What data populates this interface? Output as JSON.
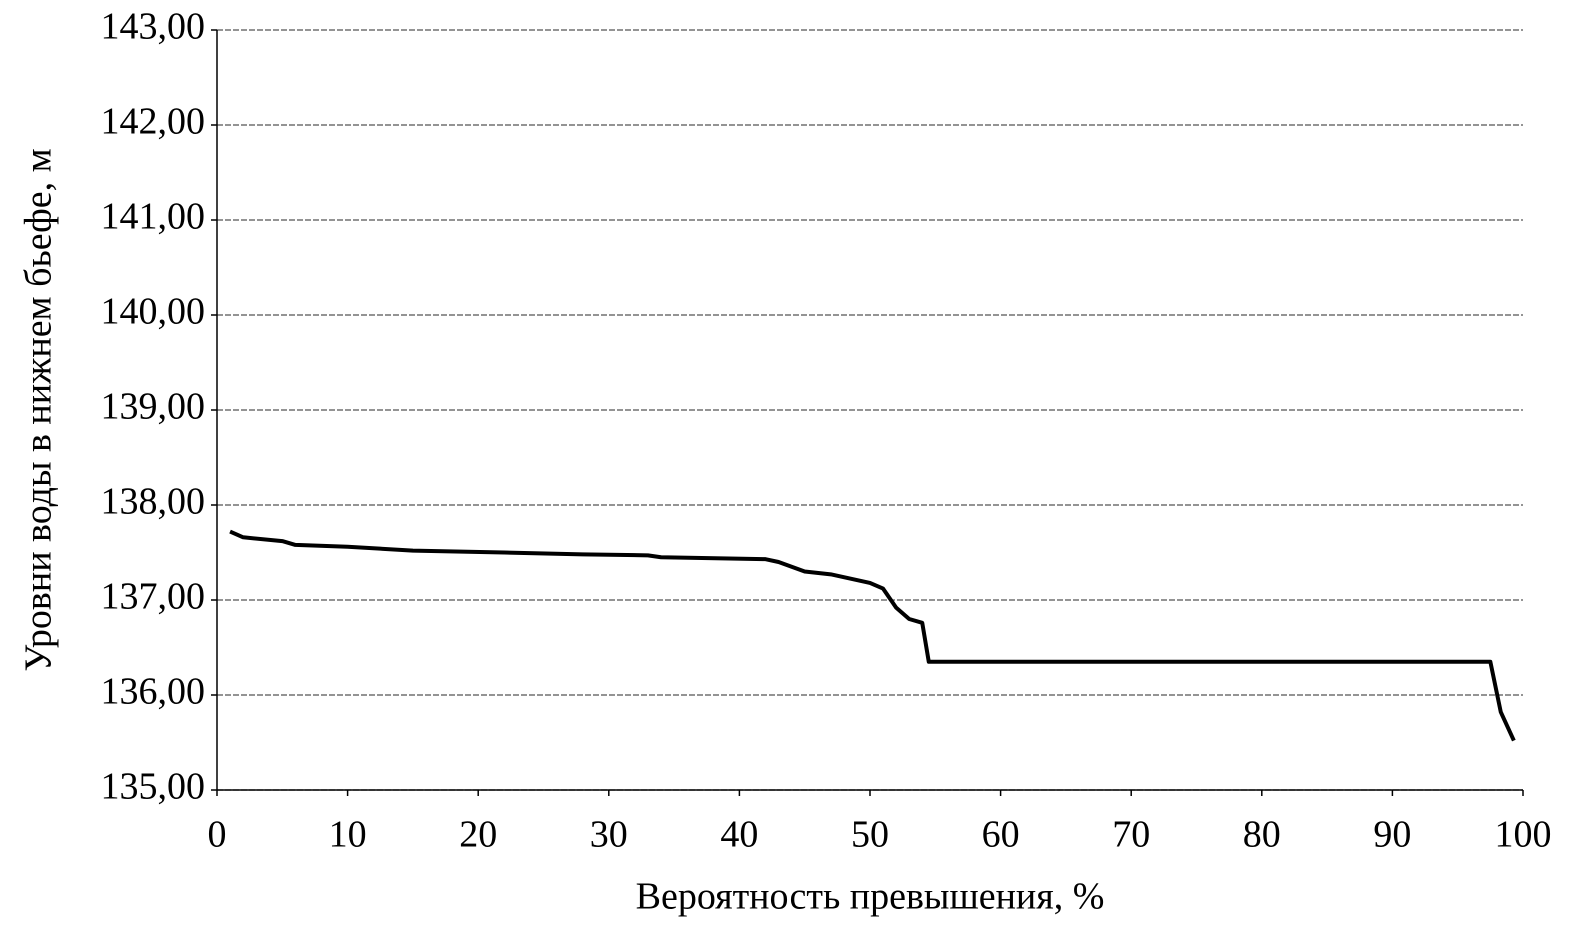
{
  "chart_data": {
    "type": "line",
    "x_label": "Вероятность превышения, %",
    "y_label": "Уровни воды в нижнем бьефе, м",
    "xlim": [
      0,
      100
    ],
    "xticks": [
      0,
      10,
      20,
      30,
      40,
      50,
      60,
      70,
      80,
      90,
      100
    ],
    "ylim": [
      135,
      143
    ],
    "yticks": [
      {
        "value": 135,
        "label": "135,00"
      },
      {
        "value": 136,
        "label": "136,00"
      },
      {
        "value": 137,
        "label": "137,00"
      },
      {
        "value": 138,
        "label": "138,00"
      },
      {
        "value": 139,
        "label": "139,00"
      },
      {
        "value": 140,
        "label": "140,00"
      },
      {
        "value": 141,
        "label": "141,00"
      },
      {
        "value": 142,
        "label": "142,00"
      },
      {
        "value": 143,
        "label": "143,00"
      }
    ],
    "grid": true,
    "series": [
      {
        "color": "#000000",
        "x": [
          1,
          2,
          5,
          6,
          10,
          15,
          22,
          28,
          33,
          34,
          42,
          43,
          45,
          47,
          48,
          50,
          51,
          52,
          53,
          54,
          54.5,
          97.5,
          98.3,
          99.3
        ],
        "values": [
          137.72,
          137.66,
          137.62,
          137.58,
          137.56,
          137.52,
          137.5,
          137.48,
          137.47,
          137.45,
          137.43,
          137.4,
          137.3,
          137.27,
          137.24,
          137.18,
          137.12,
          136.92,
          136.8,
          136.76,
          136.35,
          136.35,
          135.82,
          135.52
        ]
      }
    ]
  }
}
